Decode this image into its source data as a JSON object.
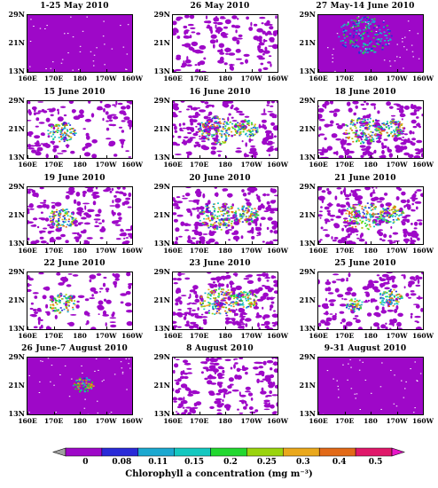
{
  "axes": {
    "y_ticks": [
      "29N",
      "21N",
      "13N"
    ],
    "x_ticks": [
      "160E",
      "170E",
      "180",
      "170W",
      "160W"
    ]
  },
  "colors": {
    "background_low": "#9e08c8",
    "bins": [
      "#9e08c8",
      "#2a2bd8",
      "#1ca8d0",
      "#14c8c0",
      "#22d830",
      "#9ad40e",
      "#eaa81c",
      "#e26a18",
      "#e0186a"
    ]
  },
  "panels": [
    {
      "title": "1-25 May 2010",
      "coverage": 0.97,
      "bloom": "none"
    },
    {
      "title": "26 May 2010",
      "coverage": 0.45,
      "bloom": "none"
    },
    {
      "title": "27 May-14 June 2010",
      "coverage": 0.96,
      "bloom": "central"
    },
    {
      "title": "15 June 2010",
      "coverage": 0.35,
      "bloom": "left"
    },
    {
      "title": "16 June 2010",
      "coverage": 0.55,
      "bloom": "mid"
    },
    {
      "title": "18 June 2010",
      "coverage": 0.55,
      "bloom": "mid"
    },
    {
      "title": "19 June 2010",
      "coverage": 0.45,
      "bloom": "left"
    },
    {
      "title": "20 June 2010",
      "coverage": 0.5,
      "bloom": "mid"
    },
    {
      "title": "21 June 2010",
      "coverage": 0.55,
      "bloom": "mid"
    },
    {
      "title": "22 June 2010",
      "coverage": 0.3,
      "bloom": "left"
    },
    {
      "title": "23 June 2010",
      "coverage": 0.55,
      "bloom": "mid"
    },
    {
      "title": "25 June 2010",
      "coverage": 0.4,
      "bloom": "right"
    },
    {
      "title": "26 June-7 August 2010",
      "coverage": 0.97,
      "bloom": "small"
    },
    {
      "title": "8 August 2010",
      "coverage": 0.55,
      "bloom": "none"
    },
    {
      "title": "9-31 August 2010",
      "coverage": 0.97,
      "bloom": "none"
    }
  ],
  "colorbar": {
    "labels": [
      "0",
      "0.08",
      "0.11",
      "0.15",
      "0.2",
      "0.25",
      "0.3",
      "0.4",
      "0.5"
    ],
    "left_arrow_color": "#a0a0a0",
    "right_arrow_color": "#e818c8",
    "title": "Chlorophyll a concentration (mg m⁻³)"
  }
}
